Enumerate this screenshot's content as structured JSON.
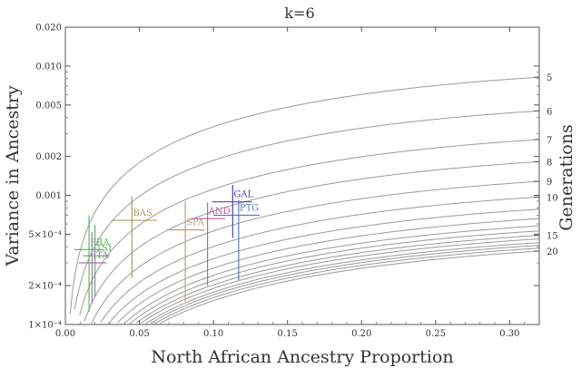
{
  "chart_data": {
    "type": "scatter",
    "title": "k=6",
    "xlabel": "North African Ancestry Proportion",
    "ylabel": "Variance in Ancestry",
    "right_axis_label": "Generations",
    "x_range": [
      0,
      0.32
    ],
    "y_range": [
      0.0001,
      0.02
    ],
    "y_scale": "log",
    "x_ticks": [
      {
        "value": 0.0,
        "label": "0.00"
      },
      {
        "value": 0.05,
        "label": "0.05"
      },
      {
        "value": 0.1,
        "label": "0.10"
      },
      {
        "value": 0.15,
        "label": "0.15"
      },
      {
        "value": 0.2,
        "label": "0.20"
      },
      {
        "value": 0.25,
        "label": "0.25"
      },
      {
        "value": 0.3,
        "label": "0.30"
      }
    ],
    "y_ticks": [
      {
        "value": 0.0001,
        "label": "1×10⁻⁴"
      },
      {
        "value": 0.0002,
        "label": "2×10⁻⁴"
      },
      {
        "value": 0.0005,
        "label": "5×10⁻⁴"
      },
      {
        "value": 0.001,
        "label": "0.001"
      },
      {
        "value": 0.002,
        "label": "0.002"
      },
      {
        "value": 0.005,
        "label": "0.005"
      },
      {
        "value": 0.01,
        "label": "0.010"
      },
      {
        "value": 0.02,
        "label": "0.020"
      }
    ],
    "generation_curves": {
      "x_max": 0.32,
      "curves": [
        {
          "label": "5",
          "y_end": 0.0082
        },
        {
          "label": "6",
          "y_end": 0.0045
        },
        {
          "label": "7",
          "y_end": 0.0027
        },
        {
          "label": "8",
          "y_end": 0.00182
        },
        {
          "label": "9",
          "y_end": 0.00128
        },
        {
          "label": "10",
          "y_end": 0.00097
        },
        {
          "label": "",
          "y_end": 0.00078
        },
        {
          "label": "",
          "y_end": 0.00066
        },
        {
          "label": "",
          "y_end": 0.00058
        },
        {
          "label": "",
          "y_end": 0.00053
        },
        {
          "label": "15",
          "y_end": 0.00049
        },
        {
          "label": "",
          "y_end": 0.00046
        },
        {
          "label": "",
          "y_end": 0.00043
        },
        {
          "label": "",
          "y_end": 0.00041
        },
        {
          "label": "",
          "y_end": 0.00039
        },
        {
          "label": "20",
          "y_end": 0.00037
        }
      ]
    },
    "populations": [
      {
        "name": "FRA",
        "x": 0.016,
        "x_lo": 0.006,
        "x_hi": 0.026,
        "y": 0.00038,
        "y_lo": 0.000125,
        "y_hi": 0.0007,
        "color": "#5cb85c"
      },
      {
        "name": "TSI",
        "x": 0.02,
        "x_lo": 0.012,
        "x_hi": 0.03,
        "y": 0.00034,
        "y_lo": 0.000165,
        "y_hi": 0.00059,
        "color": "#6aa86a"
      },
      {
        "name": "ITA",
        "x": 0.018,
        "x_lo": 0.009,
        "x_hi": 0.028,
        "y": 0.0003,
        "y_lo": 0.000145,
        "y_hi": 0.00052,
        "color": "#a07cb0"
      },
      {
        "name": "BAS",
        "x": 0.045,
        "x_lo": 0.031,
        "x_hi": 0.062,
        "y": 0.00064,
        "y_lo": 0.00023,
        "y_hi": 0.00098,
        "color": "#a3a35a"
      },
      {
        "name": "SPA",
        "x": 0.081,
        "x_lo": 0.069,
        "x_hi": 0.094,
        "y": 0.00054,
        "y_lo": 0.00015,
        "y_hi": 0.0009,
        "color": "#c79a78"
      },
      {
        "name": "AND",
        "x": 0.096,
        "x_lo": 0.085,
        "x_hi": 0.108,
        "y": 0.00066,
        "y_lo": 0.0002,
        "y_hi": 0.00088,
        "color": "#c0609a"
      },
      {
        "name": "GAL",
        "x": 0.113,
        "x_lo": 0.099,
        "x_hi": 0.126,
        "y": 0.00089,
        "y_lo": 0.00047,
        "y_hi": 0.0012,
        "color": "#4a4aa8"
      },
      {
        "name": "PTG",
        "x": 0.117,
        "x_lo": 0.1,
        "x_hi": 0.131,
        "y": 0.0007,
        "y_lo": 0.00022,
        "y_hi": 0.00092,
        "color": "#5a78c0"
      }
    ],
    "grid": false,
    "legend": "none"
  }
}
